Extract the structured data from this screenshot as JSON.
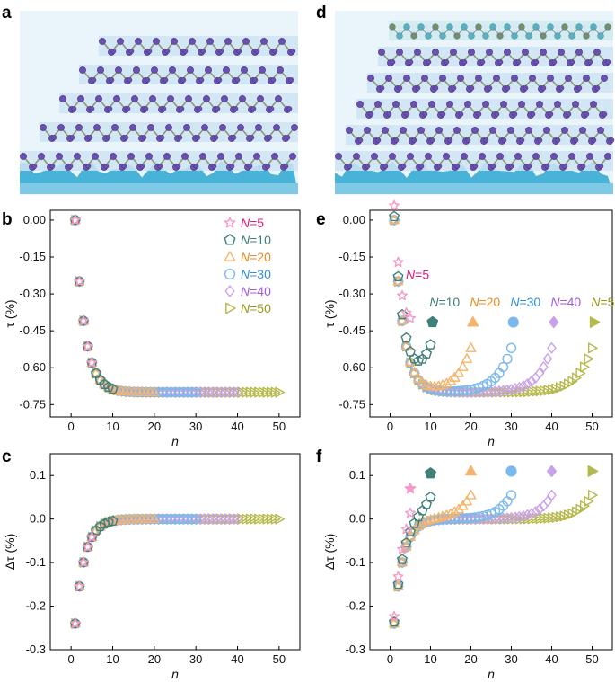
{
  "panel_labels": {
    "a": "a",
    "b": "b",
    "c": "c",
    "d": "d",
    "e": "e",
    "f": "f"
  },
  "series_names": [
    "N=5",
    "N=10",
    "N=20",
    "N=30",
    "N=40",
    "N=50"
  ],
  "colors": {
    "N=5": "#f49ac8",
    "N=10": "#3f8078",
    "N=20": "#f5b46a",
    "N=30": "#7ab9ee",
    "N=40": "#c9a1ea",
    "N=50": "#b5b84a",
    "N=5_text": "#e5177e",
    "N=20_text": "#f08a1e",
    "N=30_text": "#2f8fe6",
    "N=40_text": "#a35ae6",
    "N=50_text": "#9a9a1a",
    "substrate": "#48b3d6",
    "atom": "#6b50b0",
    "bond": "#8a9a70",
    "layer_band": "#cfe3f4",
    "sulfur": "#5ab0c0"
  },
  "markers": {
    "N=5": "star",
    "N=10": "pentagon",
    "N=20": "triangle",
    "N=30": "circle",
    "N=40": "diamond",
    "N=50": "triangle-right"
  },
  "legend_label": {
    "prefix": "N",
    "values": [
      "=5",
      "=10",
      "=20",
      "=30",
      "=40",
      "=50"
    ]
  },
  "schematic": {
    "left_layers": 5,
    "right_layers": 6,
    "right_top_layer": "heterolayer"
  },
  "chart_data": [
    {
      "panel": "b",
      "type": "scatter",
      "xlabel": "n",
      "ylabel": "τ (%)",
      "xlim": [
        -5,
        55
      ],
      "ylim": [
        -0.8,
        0.04
      ],
      "xticks": [
        "0",
        "10",
        "20",
        "30",
        "40",
        "50"
      ],
      "yticks": [
        "0.00",
        "-0.15",
        "-0.30",
        "-0.45",
        "-0.60",
        "-0.75"
      ],
      "legend_position": "top-right",
      "model": "saturating_decay",
      "params": {
        "amplitude": 0.7,
        "rate": 0.44
      }
    },
    {
      "panel": "c",
      "type": "scatter",
      "xlabel": "n",
      "ylabel": "Δτ (%)",
      "xlim": [
        -5,
        55
      ],
      "ylim": [
        -0.3,
        0.15
      ],
      "xticks": [
        "0",
        "10",
        "20",
        "30",
        "40",
        "50"
      ],
      "yticks": [
        "0.1",
        "0.0",
        "-0.1",
        "-0.2",
        "-0.3"
      ],
      "model": "derivative_decay",
      "params": {
        "amplitude": 0.24,
        "rate": 0.44
      }
    },
    {
      "panel": "e",
      "type": "scatter",
      "xlabel": "n",
      "ylabel": "τ (%)",
      "xlim": [
        -5,
        55
      ],
      "ylim": [
        -0.8,
        0.04
      ],
      "xticks": [
        "0",
        "10",
        "20",
        "30",
        "40",
        "50"
      ],
      "yticks": [
        "0.00",
        "-0.15",
        "-0.30",
        "-0.45",
        "-0.60",
        "-0.75"
      ],
      "series_labels_inline": [
        {
          "series": "N=5",
          "x": 6.8,
          "y": -0.24
        },
        {
          "series": "N=10",
          "x": 13.5,
          "y": -0.35
        },
        {
          "series": "N=20",
          "x": 23.5,
          "y": -0.35
        },
        {
          "series": "N=30",
          "x": 33.5,
          "y": -0.35
        },
        {
          "series": "N=40",
          "x": 43.5,
          "y": -0.35
        },
        {
          "series": "N=50",
          "x": 53.5,
          "y": -0.35
        }
      ],
      "filled_markers": [
        {
          "series": "N=10",
          "x": 10.5,
          "y": -0.415
        },
        {
          "series": "N=20",
          "x": 20.5,
          "y": -0.415
        },
        {
          "series": "N=30",
          "x": 30.5,
          "y": -0.415
        },
        {
          "series": "N=40",
          "x": 40.5,
          "y": -0.415
        },
        {
          "series": "N=50",
          "x": 50.5,
          "y": -0.415
        }
      ],
      "model": "two_sided_decay",
      "params": {
        "amplitude": 0.7,
        "rate": 0.44,
        "edge_amplitude": 0.18,
        "edge_rate": 0.28
      }
    },
    {
      "panel": "f",
      "type": "scatter",
      "xlabel": "n",
      "ylabel": "Δτ (%)",
      "xlim": [
        -5,
        55
      ],
      "ylim": [
        -0.3,
        0.15
      ],
      "xticks": [
        "0",
        "10",
        "20",
        "30",
        "40",
        "50"
      ],
      "yticks": [
        "0.1",
        "0.0",
        "-0.1",
        "-0.2",
        "-0.3"
      ],
      "filled_markers": [
        {
          "series": "N=5",
          "x": 5,
          "y": 0.07
        },
        {
          "series": "N=10",
          "x": 10,
          "y": 0.105
        },
        {
          "series": "N=20",
          "x": 20,
          "y": 0.11
        },
        {
          "series": "N=30",
          "x": 30,
          "y": 0.11
        },
        {
          "series": "N=40",
          "x": 40,
          "y": 0.11
        },
        {
          "series": "N=50",
          "x": 50,
          "y": 0.11
        }
      ],
      "model": "two_sided_derivative",
      "params": {
        "amplitude": 0.24,
        "rate": 0.44,
        "edge_amplitude": 0.055,
        "edge_rate": 0.3
      }
    }
  ]
}
